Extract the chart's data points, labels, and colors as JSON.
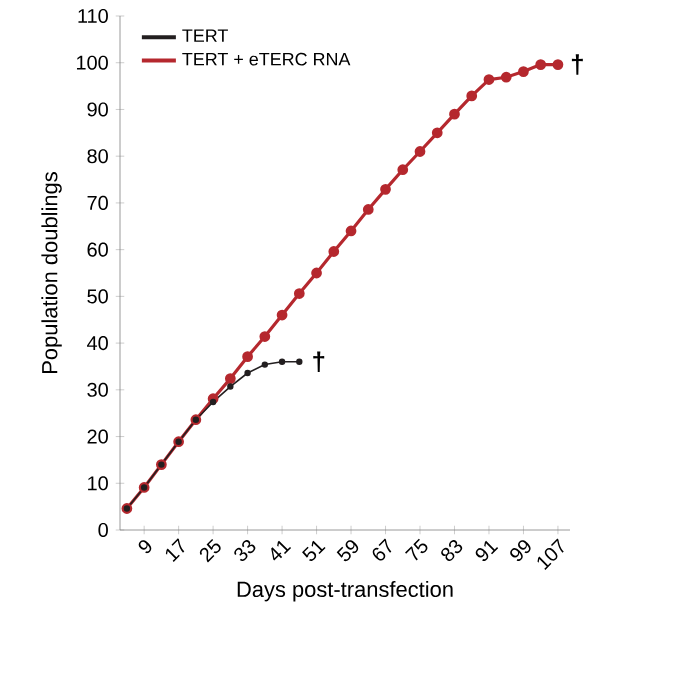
{
  "chart_data": {
    "type": "line",
    "xlabel": "Days post-transfection",
    "ylabel": "Population doublings",
    "categories": [
      null,
      "9",
      null,
      "17",
      null,
      "25",
      null,
      "33",
      null,
      "41",
      null,
      "51",
      null,
      "59",
      null,
      "67",
      null,
      "75",
      null,
      "83",
      null,
      "91",
      null,
      "99",
      null,
      "107"
    ],
    "series": [
      {
        "name": "TERT",
        "color": "#231f20",
        "values": [
          4.6,
          9.1,
          14,
          18.9,
          23.6,
          27.4,
          30.7,
          33.6,
          35.4,
          36,
          36,
          null,
          null,
          null,
          null,
          null,
          null,
          null,
          null,
          null,
          null,
          null,
          null,
          null,
          null,
          null
        ]
      },
      {
        "name": "TERT + eTERC RNA",
        "color": "#b5282e",
        "values": [
          4.6,
          9.1,
          14,
          18.9,
          23.6,
          28.1,
          32.4,
          37.1,
          41.4,
          46,
          50.6,
          55,
          59.6,
          64,
          68.6,
          72.9,
          77.1,
          81,
          85,
          89,
          92.9,
          96.4,
          96.9,
          98.1,
          99.6,
          99.6
        ]
      }
    ],
    "annotations": [
      "†",
      "†"
    ],
    "ylim": [
      0,
      110
    ],
    "yticks": [
      0,
      10,
      20,
      30,
      40,
      50,
      60,
      70,
      80,
      90,
      100,
      110
    ],
    "grid": false,
    "legend": "top left",
    "marker": "circle",
    "line_style": "solid"
  }
}
